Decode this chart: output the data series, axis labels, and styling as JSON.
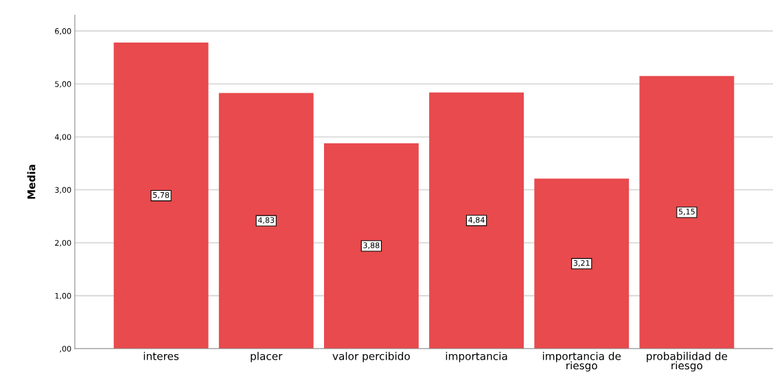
{
  "chart_data": {
    "type": "bar",
    "ylabel": "Media",
    "categories": [
      "interes",
      "placer",
      "valor percibido",
      "importancia",
      "importancia de riesgo",
      "probabilidad de riesgo"
    ],
    "values": [
      5.78,
      4.83,
      3.88,
      4.84,
      3.21,
      5.15
    ],
    "value_labels": [
      "5,78",
      "4,83",
      "3,88",
      "4,84",
      "3,21",
      "5,15"
    ],
    "color": "#e84a4d",
    "ylim": [
      0,
      6.3
    ],
    "yticks": [
      {
        "value": 0,
        "label": ",00"
      },
      {
        "value": 1,
        "label": "1,00"
      },
      {
        "value": 2,
        "label": "2,00"
      },
      {
        "value": 3,
        "label": "3,00"
      },
      {
        "value": 4,
        "label": "4,00"
      },
      {
        "value": 5,
        "label": "5,00"
      },
      {
        "value": 6,
        "label": "6,00"
      }
    ],
    "grid": "y"
  }
}
